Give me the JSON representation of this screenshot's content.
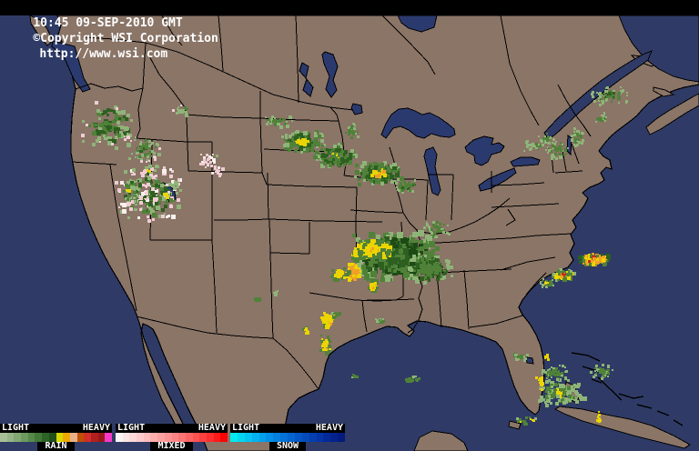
{
  "header": {
    "time": "10:45 09-SEP-2010 GMT",
    "copyright": "©Copyright WSI Corporation",
    "url": "http://www.wsi.com"
  },
  "map": {
    "colors": {
      "ocean": "#2f3b66",
      "land": "#8a7567",
      "lake": "#2b3a6e",
      "outline": "#000000"
    }
  },
  "radar": {
    "palette": {
      "lightgreen": "#8fb478",
      "green": "#4f8238",
      "darkgreen": "#2d6020",
      "deepgreen": "#1d4a14",
      "yellow": "#ecd400",
      "orange": "#f0a028",
      "rust": "#d05c14",
      "red": "#c03018",
      "pink": "#f0ccd4",
      "white": "#f8f0ec"
    },
    "clusters": [
      {
        "c": [
          118,
          136
        ],
        "r": [
          30,
          26
        ],
        "n": 120,
        "s": 4,
        "core": [
          "darkgreen",
          "green"
        ],
        "mid": [
          "green",
          "darkgreen",
          "lightgreen"
        ],
        "edge": [
          "lightgreen",
          "lightgreen",
          "pink"
        ],
        "cr": 0.35,
        "er": 0.7
      },
      {
        "c": [
          158,
          163
        ],
        "r": [
          20,
          16
        ],
        "n": 70,
        "s": 3,
        "core": [
          "green",
          "darkgreen"
        ],
        "mid": [
          "green",
          "lightgreen"
        ],
        "edge": [
          "lightgreen",
          "pink"
        ],
        "cr": 0.35,
        "er": 0.7
      },
      {
        "c": [
          162,
          212
        ],
        "r": [
          40,
          34
        ],
        "n": 260,
        "s": 4,
        "core": [
          "darkgreen",
          "green",
          "pink",
          "white"
        ],
        "mid": [
          "green",
          "darkgreen",
          "lightgreen",
          "pink"
        ],
        "edge": [
          "lightgreen",
          "pink",
          "white"
        ],
        "cr": 0.3,
        "er": 0.72
      },
      {
        "c": [
          140,
          209
        ],
        "r": [
          3,
          3
        ],
        "n": 5,
        "s": 3,
        "core": [
          "yellow"
        ],
        "mid": [
          "yellow"
        ],
        "edge": [
          "yellow"
        ],
        "cr": 0.5,
        "er": 0.9
      },
      {
        "c": [
          162,
          186
        ],
        "r": [
          3,
          2
        ],
        "n": 4,
        "s": 3,
        "core": [
          "yellow"
        ],
        "mid": [
          "yellow"
        ],
        "edge": [
          "yellow"
        ],
        "cr": 0.5,
        "er": 0.9
      },
      {
        "c": [
          181,
          213
        ],
        "r": [
          3,
          3
        ],
        "n": 5,
        "s": 3,
        "core": [
          "yellow"
        ],
        "mid": [
          "yellow"
        ],
        "edge": [
          "yellow"
        ],
        "cr": 0.5,
        "er": 0.9
      },
      {
        "c": [
          227,
          176
        ],
        "r": [
          11,
          9
        ],
        "n": 28,
        "s": 3,
        "core": [
          "pink"
        ],
        "mid": [
          "pink",
          "white"
        ],
        "edge": [
          "pink",
          "lightgreen"
        ],
        "cr": 0.4,
        "er": 0.75
      },
      {
        "c": [
          237,
          187
        ],
        "r": [
          7,
          6
        ],
        "n": 14,
        "s": 3,
        "core": [
          "pink"
        ],
        "mid": [
          "pink",
          "white"
        ],
        "edge": [
          "pink"
        ],
        "cr": 0.4,
        "er": 0.75
      },
      {
        "c": [
          199,
          121
        ],
        "r": [
          13,
          7
        ],
        "n": 22,
        "s": 3,
        "core": [
          "lightgreen"
        ],
        "mid": [
          "lightgreen",
          "green"
        ],
        "edge": [
          "lightgreen",
          "pink"
        ],
        "cr": 0.4,
        "er": 0.75
      },
      {
        "c": [
          305,
          132
        ],
        "r": [
          18,
          7
        ],
        "n": 40,
        "s": 3,
        "core": [
          "green"
        ],
        "mid": [
          "green",
          "lightgreen"
        ],
        "edge": [
          "lightgreen"
        ],
        "cr": 0.35,
        "er": 0.75
      },
      {
        "c": [
          331,
          154
        ],
        "r": [
          26,
          12
        ],
        "n": 150,
        "s": 4,
        "core": [
          "yellow",
          "yellow",
          "darkgreen"
        ],
        "mid": [
          "green",
          "darkgreen"
        ],
        "edge": [
          "lightgreen",
          "green"
        ],
        "cr": 0.28,
        "er": 0.72
      },
      {
        "c": [
          368,
          170
        ],
        "r": [
          24,
          14
        ],
        "n": 130,
        "s": 4,
        "core": [
          "yellow",
          "green"
        ],
        "mid": [
          "green",
          "darkgreen"
        ],
        "edge": [
          "lightgreen",
          "green"
        ],
        "cr": 0.25,
        "er": 0.72
      },
      {
        "c": [
          415,
          189
        ],
        "r": [
          28,
          14
        ],
        "n": 160,
        "s": 4,
        "core": [
          "yellow",
          "yellow",
          "orange"
        ],
        "mid": [
          "green",
          "darkgreen"
        ],
        "edge": [
          "lightgreen",
          "green"
        ],
        "cr": 0.3,
        "er": 0.72
      },
      {
        "c": [
          445,
          203
        ],
        "r": [
          14,
          8
        ],
        "n": 45,
        "s": 3,
        "core": [
          "green"
        ],
        "mid": [
          "green",
          "darkgreen"
        ],
        "edge": [
          "lightgreen"
        ],
        "cr": 0.35,
        "er": 0.75
      },
      {
        "c": [
          385,
          143
        ],
        "r": [
          11,
          9
        ],
        "n": 28,
        "s": 3,
        "core": [
          "green"
        ],
        "mid": [
          "green",
          "lightgreen"
        ],
        "edge": [
          "lightgreen"
        ],
        "cr": 0.35,
        "er": 0.75
      },
      {
        "c": [
          432,
          280
        ],
        "r": [
          50,
          28
        ],
        "n": 430,
        "s": 6,
        "core": [
          "green",
          "darkgreen"
        ],
        "mid": [
          "darkgreen",
          "green",
          "deepgreen"
        ],
        "edge": [
          "lightgreen",
          "green"
        ],
        "cr": 0.3,
        "er": 0.75
      },
      {
        "c": [
          406,
          273
        ],
        "r": [
          22,
          12
        ],
        "n": 170,
        "s": 5,
        "core": [
          "orange",
          "yellow"
        ],
        "mid": [
          "yellow",
          "yellow",
          "green"
        ],
        "edge": [
          "yellow",
          "green"
        ],
        "cr": 0.3,
        "er": 0.7
      },
      {
        "c": [
          386,
          297
        ],
        "r": [
          8,
          11
        ],
        "n": 70,
        "s": 4,
        "core": [
          "orange"
        ],
        "mid": [
          "orange",
          "yellow"
        ],
        "edge": [
          "yellow"
        ],
        "cr": 0.45,
        "er": 0.8
      },
      {
        "c": [
          372,
          300
        ],
        "r": [
          11,
          7
        ],
        "n": 40,
        "s": 4,
        "core": [
          "yellow"
        ],
        "mid": [
          "yellow",
          "green"
        ],
        "edge": [
          "green"
        ],
        "cr": 0.4,
        "er": 0.75
      },
      {
        "c": [
          408,
          312
        ],
        "r": [
          6,
          7
        ],
        "n": 30,
        "s": 4,
        "core": [
          "yellow",
          "orange"
        ],
        "mid": [
          "yellow"
        ],
        "edge": [
          "green"
        ],
        "cr": 0.4,
        "er": 0.75
      },
      {
        "c": [
          470,
          294
        ],
        "r": [
          26,
          17
        ],
        "n": 140,
        "s": 4,
        "core": [
          "green"
        ],
        "mid": [
          "green",
          "darkgreen"
        ],
        "edge": [
          "lightgreen"
        ],
        "cr": 0.3,
        "er": 0.75
      },
      {
        "c": [
          478,
          251
        ],
        "r": [
          16,
          11
        ],
        "n": 35,
        "s": 3,
        "core": [
          "green"
        ],
        "mid": [
          "green",
          "lightgreen"
        ],
        "edge": [
          "lightgreen"
        ],
        "cr": 0.35,
        "er": 0.75
      },
      {
        "c": [
          359,
          351
        ],
        "r": [
          7,
          9
        ],
        "n": 40,
        "s": 4,
        "core": [
          "orange",
          "yellow"
        ],
        "mid": [
          "yellow"
        ],
        "edge": [
          "green",
          "yellow"
        ],
        "cr": 0.4,
        "er": 0.75
      },
      {
        "c": [
          357,
          377
        ],
        "r": [
          7,
          11
        ],
        "n": 40,
        "s": 3,
        "core": [
          "yellow"
        ],
        "mid": [
          "yellow",
          "green"
        ],
        "edge": [
          "green"
        ],
        "cr": 0.4,
        "er": 0.75
      },
      {
        "c": [
          336,
          363
        ],
        "r": [
          4,
          4
        ],
        "n": 12,
        "s": 3,
        "core": [
          "yellow"
        ],
        "mid": [
          "yellow"
        ],
        "edge": [
          "green"
        ],
        "cr": 0.5,
        "er": 0.85
      },
      {
        "c": [
          368,
          344
        ],
        "r": [
          5,
          4
        ],
        "n": 12,
        "s": 3,
        "core": [
          "green"
        ],
        "mid": [
          "green"
        ],
        "edge": [
          "lightgreen"
        ],
        "cr": 0.5,
        "er": 0.85
      },
      {
        "c": [
          418,
          352
        ],
        "r": [
          6,
          4
        ],
        "n": 12,
        "s": 3,
        "core": [
          "green"
        ],
        "mid": [
          "green",
          "lightgreen"
        ],
        "edge": [
          "lightgreen"
        ],
        "cr": 0.5,
        "er": 0.85
      },
      {
        "c": [
          452,
          416
        ],
        "r": [
          10,
          4
        ],
        "n": 14,
        "s": 3,
        "core": [
          "green"
        ],
        "mid": [
          "green",
          "lightgreen"
        ],
        "edge": [
          "lightgreen"
        ],
        "cr": 0.5,
        "er": 0.85
      },
      {
        "c": [
          389,
          412
        ],
        "r": [
          4,
          3
        ],
        "n": 7,
        "s": 3,
        "core": [
          "green"
        ],
        "mid": [
          "green"
        ],
        "edge": [
          "lightgreen"
        ],
        "cr": 0.5,
        "er": 0.85
      },
      {
        "c": [
          614,
          430
        ],
        "r": [
          28,
          15
        ],
        "n": 130,
        "s": 4,
        "core": [
          "green",
          "yellow"
        ],
        "mid": [
          "green",
          "lightgreen"
        ],
        "edge": [
          "lightgreen"
        ],
        "cr": 0.25,
        "er": 0.7
      },
      {
        "c": [
          608,
          409
        ],
        "r": [
          16,
          9
        ],
        "n": 55,
        "s": 3,
        "core": [
          "green"
        ],
        "mid": [
          "green",
          "lightgreen"
        ],
        "edge": [
          "lightgreen"
        ],
        "cr": 0.35,
        "er": 0.75
      },
      {
        "c": [
          660,
          407
        ],
        "r": [
          13,
          9
        ],
        "n": 48,
        "s": 3,
        "core": [
          "green"
        ],
        "mid": [
          "green",
          "lightgreen"
        ],
        "edge": [
          "lightgreen"
        ],
        "cr": 0.35,
        "er": 0.75
      },
      {
        "c": [
          592,
          416
        ],
        "r": [
          6,
          12
        ],
        "n": 14,
        "s": 3,
        "core": [
          "yellow"
        ],
        "mid": [
          "yellow"
        ],
        "edge": [
          "yellow"
        ],
        "cr": 0.5,
        "er": 0.9
      },
      {
        "c": [
          570,
          390
        ],
        "r": [
          9,
          7
        ],
        "n": 20,
        "s": 3,
        "core": [
          "green"
        ],
        "mid": [
          "green",
          "lightgreen"
        ],
        "edge": [
          "lightgreen"
        ],
        "cr": 0.4,
        "er": 0.8
      },
      {
        "c": [
          600,
          392
        ],
        "r": [
          4,
          5
        ],
        "n": 8,
        "s": 3,
        "core": [
          "yellow"
        ],
        "mid": [
          "yellow"
        ],
        "edge": [
          "yellow"
        ],
        "cr": 0.5,
        "er": 0.9
      },
      {
        "c": [
          577,
          462
        ],
        "r": [
          13,
          5
        ],
        "n": 16,
        "s": 3,
        "core": [
          "green"
        ],
        "mid": [
          "green",
          "yellow"
        ],
        "edge": [
          "lightgreen"
        ],
        "cr": 0.4,
        "er": 0.8
      },
      {
        "c": [
          657,
          457
        ],
        "r": [
          2,
          8
        ],
        "n": 8,
        "s": 3,
        "core": [
          "yellow"
        ],
        "mid": [
          "yellow"
        ],
        "edge": [
          "yellow"
        ],
        "cr": 0.5,
        "er": 0.9
      },
      {
        "c": [
          651,
          284
        ],
        "r": [
          17,
          8
        ],
        "n": 120,
        "s": 4,
        "core": [
          "orange",
          "red",
          "yellow"
        ],
        "mid": [
          "yellow",
          "orange",
          "green"
        ],
        "edge": [
          "green",
          "darkgreen"
        ],
        "cr": 0.35,
        "er": 0.75
      },
      {
        "c": [
          617,
          301
        ],
        "r": [
          14,
          7
        ],
        "n": 70,
        "s": 4,
        "core": [
          "orange",
          "red"
        ],
        "mid": [
          "yellow",
          "green"
        ],
        "edge": [
          "green",
          "lightgreen"
        ],
        "cr": 0.3,
        "er": 0.72
      },
      {
        "c": [
          600,
          310
        ],
        "r": [
          8,
          5
        ],
        "n": 30,
        "s": 3,
        "core": [
          "yellow"
        ],
        "mid": [
          "green"
        ],
        "edge": [
          "lightgreen"
        ],
        "cr": 0.35,
        "er": 0.75
      },
      {
        "c": [
          612,
          164
        ],
        "r": [
          15,
          11
        ],
        "n": 45,
        "s": 3,
        "core": [
          "green"
        ],
        "mid": [
          "green",
          "lightgreen"
        ],
        "edge": [
          "lightgreen"
        ],
        "cr": 0.35,
        "er": 0.75
      },
      {
        "c": [
          600,
          151
        ],
        "r": [
          9,
          7
        ],
        "n": 24,
        "s": 3,
        "core": [
          "green"
        ],
        "mid": [
          "green",
          "lightgreen"
        ],
        "edge": [
          "lightgreen"
        ],
        "cr": 0.35,
        "er": 0.75
      },
      {
        "c": [
          634,
          149
        ],
        "r": [
          9,
          11
        ],
        "n": 30,
        "s": 3,
        "core": [
          "green"
        ],
        "mid": [
          "lightgreen",
          "green"
        ],
        "edge": [
          "lightgreen"
        ],
        "cr": 0.35,
        "er": 0.75
      },
      {
        "c": [
          659,
          129
        ],
        "r": [
          8,
          7
        ],
        "n": 20,
        "s": 3,
        "core": [
          "green"
        ],
        "mid": [
          "green",
          "lightgreen"
        ],
        "edge": [
          "lightgreen"
        ],
        "cr": 0.35,
        "er": 0.75
      },
      {
        "c": [
          668,
          104
        ],
        "r": [
          21,
          11
        ],
        "n": 75,
        "s": 3,
        "core": [
          "green",
          "darkgreen"
        ],
        "mid": [
          "green",
          "lightgreen"
        ],
        "edge": [
          "lightgreen"
        ],
        "cr": 0.35,
        "er": 0.75
      },
      {
        "c": [
          585,
          159
        ],
        "r": [
          12,
          6
        ],
        "n": 20,
        "s": 3,
        "core": [
          "lightgreen"
        ],
        "mid": [
          "lightgreen",
          "green"
        ],
        "edge": [
          "lightgreen"
        ],
        "cr": 0.4,
        "er": 0.8
      },
      {
        "c": [
          281,
          329
        ],
        "r": [
          5,
          4
        ],
        "n": 10,
        "s": 3,
        "core": [
          "green"
        ],
        "mid": [
          "green"
        ],
        "edge": [
          "lightgreen"
        ],
        "cr": 0.5,
        "er": 0.85
      },
      {
        "c": [
          301,
          320
        ],
        "r": [
          4,
          3
        ],
        "n": 6,
        "s": 3,
        "core": [
          "lightgreen"
        ],
        "mid": [
          "lightgreen"
        ],
        "edge": [
          "lightgreen"
        ],
        "cr": 0.5,
        "er": 0.85
      }
    ]
  },
  "legend": {
    "panels": [
      {
        "label": "RAIN",
        "scale_left": "LIGHT",
        "scale_right": "HEAVY",
        "colors": [
          "#a8c096",
          "#96b488",
          "#82a874",
          "#6c9a60",
          "#56884a",
          "#427838",
          "#2e6426",
          "#1e5018",
          "#d8d800",
          "#f0a800",
          "#e8b088",
          "#c05000",
          "#d03028",
          "#b02020",
          "#981818",
          "#f838c8"
        ]
      },
      {
        "label": "MIXED",
        "scale_left": "LIGHT",
        "scale_right": "HEAVY",
        "colors": [
          "#fcf4f4",
          "#fce6e6",
          "#fcd8d8",
          "#fccaca",
          "#fcbcbc",
          "#fcaeae",
          "#fca0a0",
          "#fc9292",
          "#fc8484",
          "#fc7474",
          "#fc6464",
          "#fc5252",
          "#fc4040",
          "#fc2e2e",
          "#fc1a1a",
          "#fc0404"
        ]
      },
      {
        "label": "SNOW",
        "scale_left": "LIGHT",
        "scale_right": "HEAVY",
        "colors": [
          "#04e8ec",
          "#04d6f0",
          "#04c4f2",
          "#04b2f0",
          "#04a0ec",
          "#0490e6",
          "#0480de",
          "#0472d6",
          "#0464ce",
          "#0456c4",
          "#044aba",
          "#043eb0",
          "#0434a6",
          "#042a9a",
          "#04228c",
          "#041a7e"
        ]
      }
    ]
  }
}
